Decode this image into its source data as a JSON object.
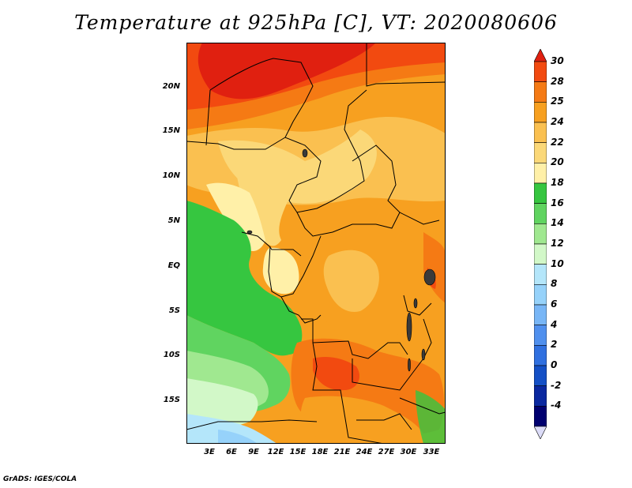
{
  "title": "Temperature at 925hPa [C], VT: 2020080606",
  "footer": "GrADS: IGES/COLA",
  "lat_labels": [
    "20N",
    "15N",
    "10N",
    "5N",
    "EQ",
    "5S",
    "10S",
    "15S"
  ],
  "lon_labels": [
    "3E",
    "6E",
    "9E",
    "12E",
    "15E",
    "18E",
    "21E",
    "24E",
    "27E",
    "30E",
    "33E"
  ],
  "colorbar": {
    "labels": [
      "30",
      "28",
      "25",
      "24",
      "22",
      "20",
      "18",
      "16",
      "14",
      "12",
      "10",
      "8",
      "6",
      "4",
      "2",
      "0",
      "-2",
      "-4"
    ],
    "colors": [
      "#e02010",
      "#f24a10",
      "#f57a14",
      "#f7a020",
      "#fac050",
      "#fbd878",
      "#fff0a8",
      "#36c640",
      "#60d460",
      "#a0e890",
      "#d2f8c8",
      "#b4e6fa",
      "#96d2fa",
      "#78b6f6",
      "#5090ee",
      "#3070e0",
      "#1450c6",
      "#0a28a0",
      "#000070",
      "#dcdcf8"
    ]
  }
}
